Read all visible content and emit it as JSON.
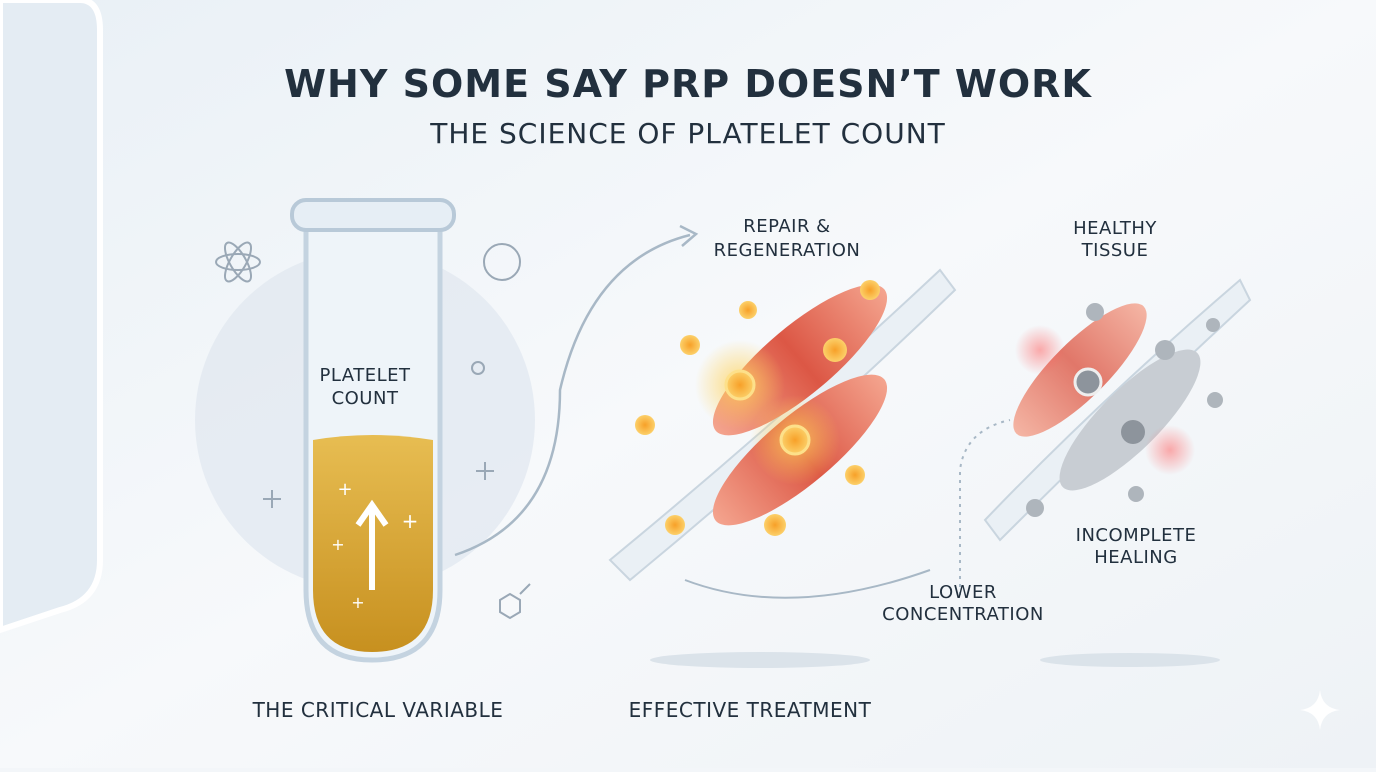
{
  "header": {
    "title": "WHY SOME SAY PRP DOESN’T WORK",
    "subtitle": "THE SCIENCE OF PLATELET COUNT"
  },
  "tube": {
    "label": [
      "PLATELET",
      "COUNT"
    ],
    "caption": "THE CRITICAL VARIABLE"
  },
  "effective": {
    "label": [
      "REPAIR &",
      "REGENERATION"
    ],
    "caption": "EFFECTIVE TREATMENT"
  },
  "incomplete": {
    "top_label": [
      "HEALTHY",
      "TISSUE"
    ],
    "bottom_label": [
      "INCOMPLETE",
      "HEALING"
    ],
    "side_label": [
      "LOWER",
      "CONCENTRATION"
    ]
  }
}
